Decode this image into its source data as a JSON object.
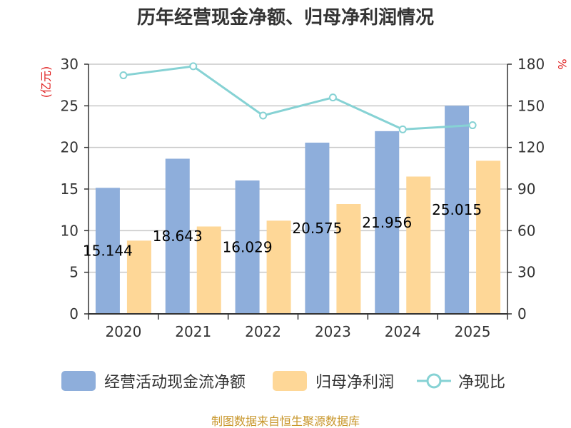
{
  "chart_data": {
    "type": "bar",
    "title": "历年经营现金净额、归母净利润情况",
    "categories": [
      "2020",
      "2021",
      "2022",
      "2023",
      "2024",
      "2025"
    ],
    "y_left": {
      "unit_label": "(亿元)",
      "range": [
        0,
        30
      ],
      "ticks": [
        "0",
        "5",
        "10",
        "15",
        "20",
        "25",
        "30"
      ]
    },
    "y_right": {
      "unit_label": "%",
      "range": [
        0,
        180
      ],
      "ticks": [
        "0",
        "30",
        "60",
        "90",
        "120",
        "150",
        "180"
      ]
    },
    "series": [
      {
        "name": "经营活动现金流净额",
        "kind": "bar",
        "axis": "left",
        "color": "#8eaedb",
        "values": [
          15.144,
          18.643,
          16.029,
          20.575,
          21.956,
          25.015
        ],
        "labels": [
          "15.144",
          "18.643",
          "16.029",
          "20.575",
          "21.956",
          "25.015"
        ]
      },
      {
        "name": "归母净利润",
        "kind": "bar",
        "axis": "left",
        "color": "#fed797",
        "values": [
          8.8,
          10.5,
          11.2,
          13.2,
          16.5,
          18.4
        ]
      },
      {
        "name": "净现比",
        "kind": "line",
        "axis": "right",
        "color": "#86d2d4",
        "values": [
          172,
          178.5,
          143,
          156,
          133,
          136
        ]
      }
    ],
    "grid": true,
    "legend_position": "bottom"
  },
  "source_note": "制图数据来自恒生聚源数据库"
}
